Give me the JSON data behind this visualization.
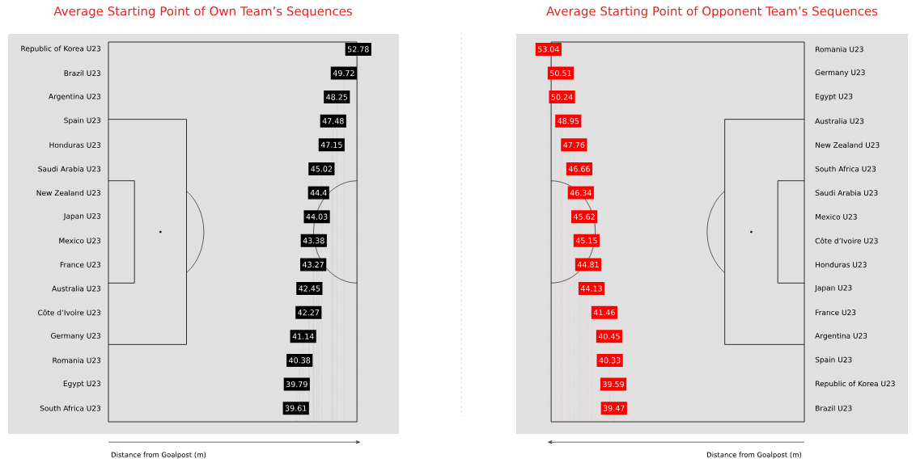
{
  "chart_data": [
    {
      "type": "other",
      "title": "Average Starting Point of Own Team’s Sequences",
      "xlabel": "Distance from Goalpost (m)",
      "categories": [
        "Republic of Korea U23",
        "Brazil U23",
        "Argentina U23",
        "Spain U23",
        "Honduras U23",
        "Saudi Arabia U23",
        "New Zealand U23",
        "Japan U23",
        "Mexico U23",
        "France U23",
        "Australia U23",
        "Côte d’Ivoire U23",
        "Germany U23",
        "Romania U23",
        "Egypt U23",
        "South Africa U23"
      ],
      "values": [
        52.78,
        49.72,
        48.25,
        47.48,
        47.15,
        45.02,
        44.4,
        44.03,
        43.38,
        43.27,
        42.45,
        42.27,
        41.14,
        40.38,
        39.79,
        39.61
      ],
      "color": "#000000",
      "data_labels": true
    },
    {
      "type": "other",
      "title": "Average Starting Point of Opponent Team’s Sequences",
      "xlabel": "Distance from Goalpost (m)",
      "categories": [
        "Romania U23",
        "Germany U23",
        "Egypt U23",
        "Australia U23",
        "New Zealand U23",
        "South Africa U23",
        "Saudi Arabia U23",
        "Mexico U23",
        "Côte d’Ivoire U23",
        "Honduras U23",
        "Japan U23",
        "France U23",
        "Argentina U23",
        "Spain U23",
        "Republic of Korea U23",
        "Brazil U23"
      ],
      "values": [
        53.04,
        50.51,
        50.24,
        48.95,
        47.76,
        46.66,
        46.34,
        45.62,
        45.15,
        44.81,
        44.13,
        41.46,
        40.45,
        40.33,
        39.59,
        39.47
      ],
      "color": "#ff0000",
      "data_labels": true
    }
  ]
}
